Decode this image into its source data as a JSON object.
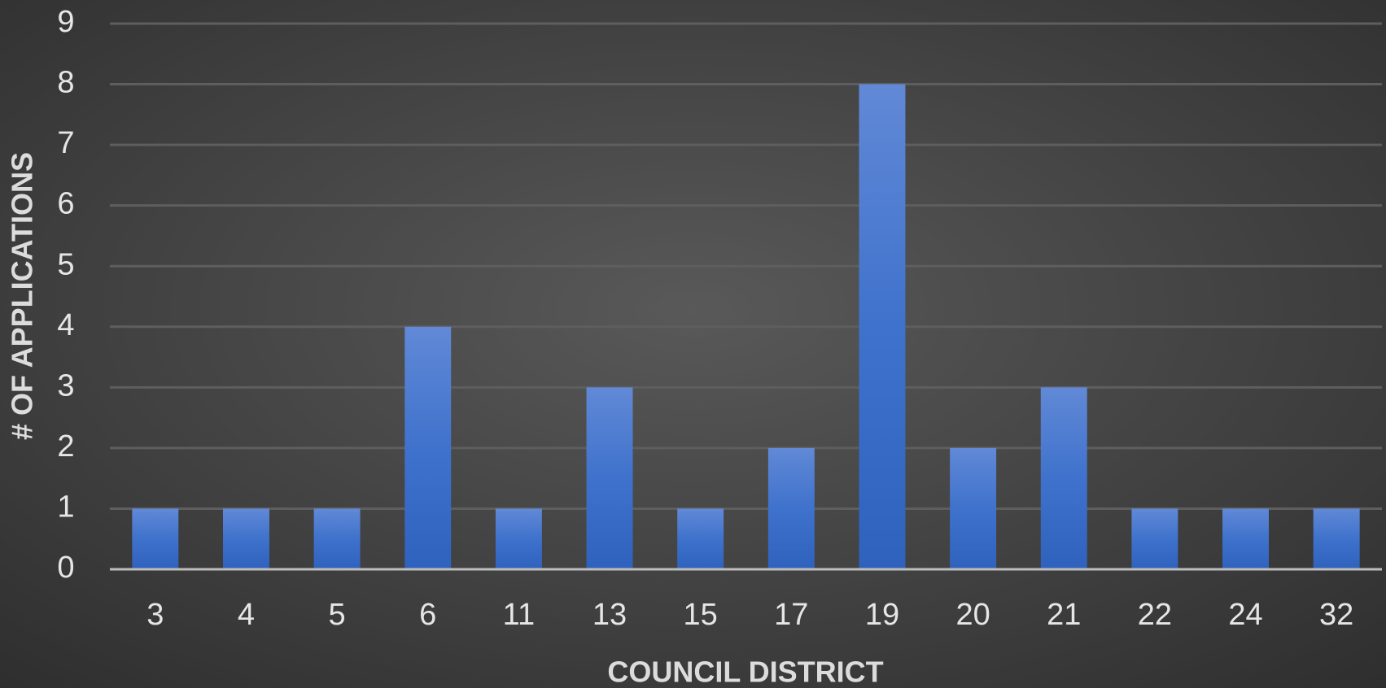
{
  "chart_data": {
    "type": "bar",
    "x_label": "COUNCIL DISTRICT",
    "y_label": "# OF APPLICATIONS",
    "categories": [
      "3",
      "4",
      "5",
      "6",
      "11",
      "13",
      "15",
      "17",
      "19",
      "20",
      "21",
      "22",
      "24",
      "32"
    ],
    "values": [
      1,
      1,
      1,
      4,
      1,
      3,
      1,
      2,
      8,
      2,
      3,
      1,
      1,
      1
    ],
    "color": "#4472c4",
    "ylim": [
      0,
      9
    ],
    "yticks": [
      0,
      1,
      2,
      3,
      4,
      5,
      6,
      7,
      8,
      9
    ],
    "grid": true
  }
}
